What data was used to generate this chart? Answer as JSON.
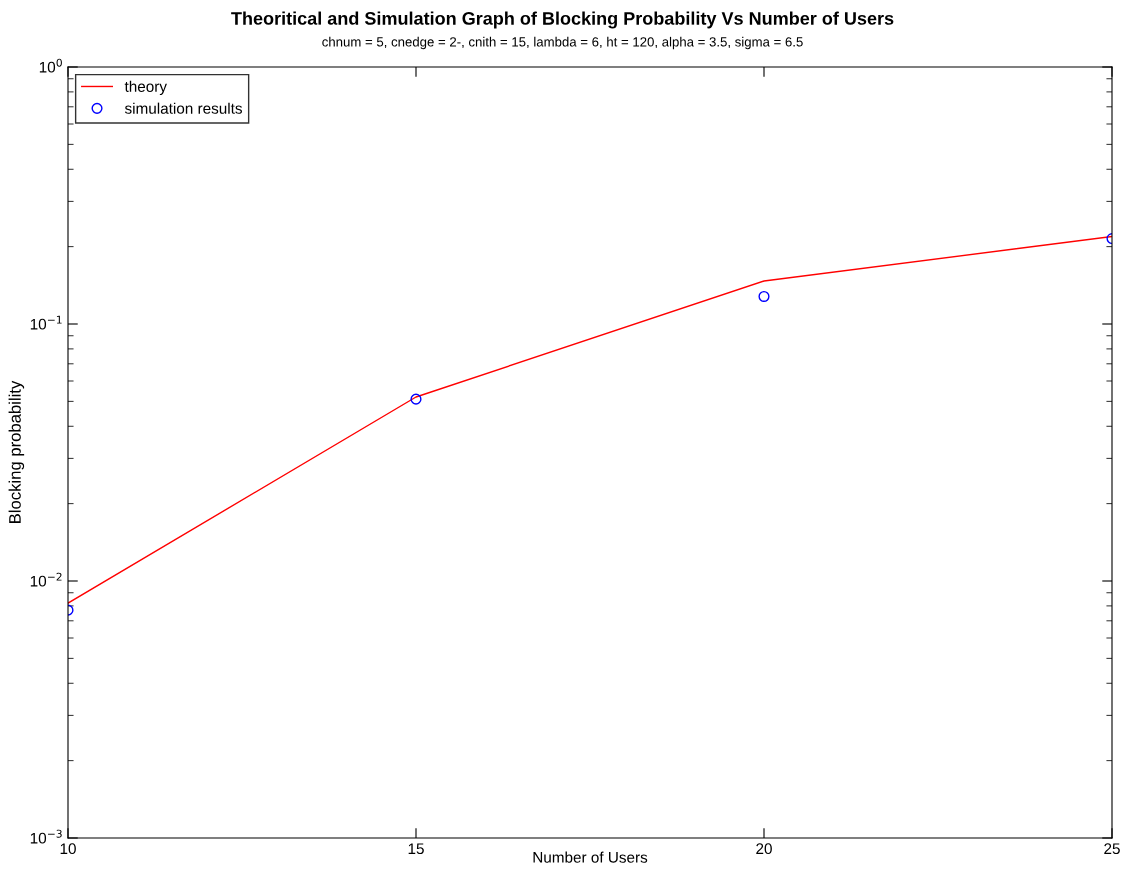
{
  "chart_data": {
    "type": "line",
    "title": "Theoritical and Simulation Graph of Blocking Probability Vs Number of Users",
    "subtitle": "chnum = 5, cnedge = 2-, cnith = 15, lambda = 6, ht = 120, alpha = 3.5, sigma = 6.5",
    "xlabel": "Number of Users",
    "ylabel": "Blocking probability",
    "x": [
      10,
      15,
      20,
      25
    ],
    "log": "y",
    "xlim": [
      10,
      25
    ],
    "xticks": [
      10,
      15,
      20,
      25
    ],
    "ylim": [
      0.001,
      1
    ],
    "yticks": [
      {
        "value": 0.001,
        "label": "10$^{−3}$"
      },
      {
        "value": 0.01,
        "label": "10$^{−2}$"
      },
      {
        "value": 0.1,
        "label": "10$^{−1}$"
      },
      {
        "value": 1,
        "label": "10$^{0}$"
      }
    ],
    "grid": false,
    "legend": "top left",
    "series": [
      {
        "name": "theory",
        "color": "#ff0000",
        "marker": "none",
        "line_style": "solid",
        "values": [
          0.0082,
          0.052,
          0.147,
          0.219
        ]
      },
      {
        "name": "simulation results",
        "type": "scatter",
        "color": "#0000ff",
        "marker": "circle",
        "values": [
          0.0077,
          0.051,
          0.128,
          0.215
        ]
      }
    ]
  }
}
